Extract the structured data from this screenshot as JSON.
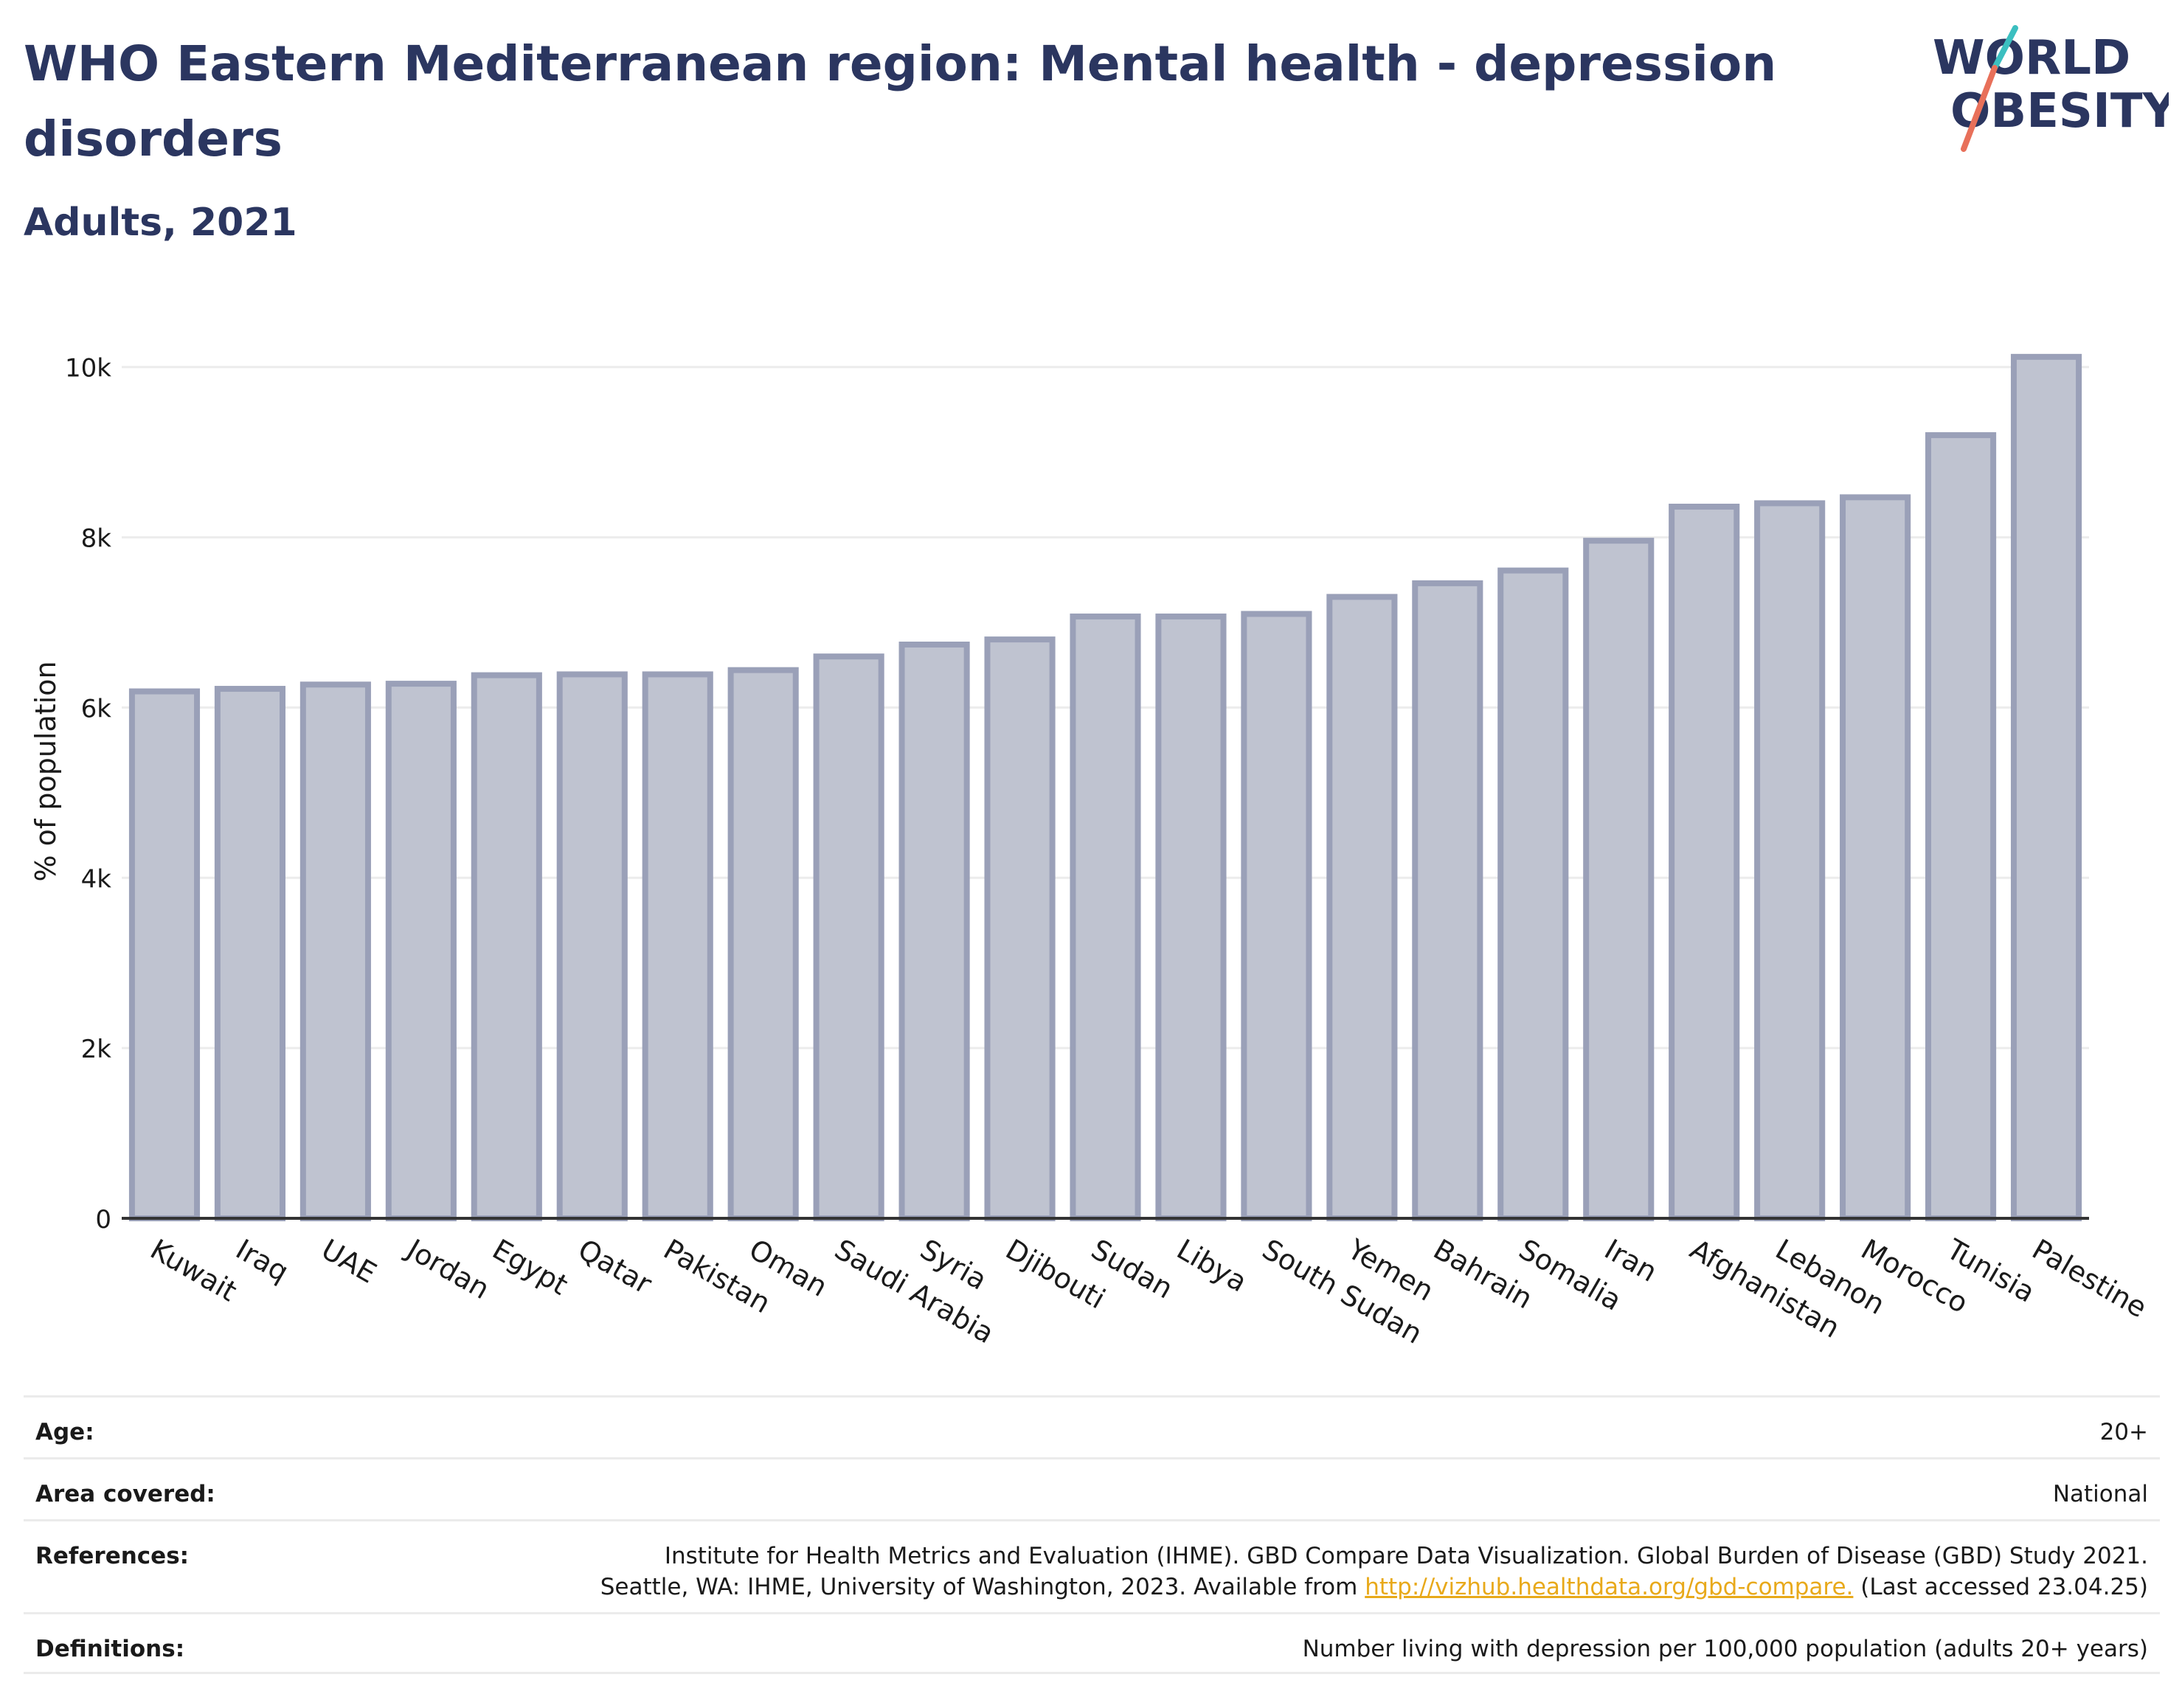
{
  "header": {
    "title": "WHO Eastern Mediterranean region: Mental health - depression disorders",
    "subtitle": "Adults, 2021"
  },
  "logo": {
    "line1": "WORLD",
    "line2": "OBESITY",
    "icon": "world-obesity-logo",
    "colors": {
      "text": "#2b3660",
      "slash_teal": "#3bbfc0",
      "slash_coral": "#e8705a"
    }
  },
  "colors": {
    "bar_fill": "#bfc3d0",
    "bar_stroke": "#9aa0b8",
    "text_dark": "#2b3660",
    "gridline": "#ececec",
    "link": "#e8a91a"
  },
  "chart_data": {
    "type": "bar",
    "title": "",
    "xlabel": "",
    "ylabel": "% of population",
    "ylim": [
      0,
      10500
    ],
    "yticks": [
      0,
      2000,
      4000,
      6000,
      8000,
      10000
    ],
    "ytick_labels": [
      "0",
      "2k",
      "4k",
      "6k",
      "8k",
      "10k"
    ],
    "grid": true,
    "categories": [
      "Kuwait",
      "Iraq",
      "UAE",
      "Jordan",
      "Egypt",
      "Qatar",
      "Pakistan",
      "Oman",
      "Saudi Arabia",
      "Syria",
      "Djibouti",
      "Sudan",
      "Libya",
      "South Sudan",
      "Yemen",
      "Bahrain",
      "Somalia",
      "Iran",
      "Afghanistan",
      "Lebanon",
      "Morocco",
      "Tunisia",
      "Palestine"
    ],
    "values": [
      6190,
      6220,
      6270,
      6280,
      6380,
      6390,
      6390,
      6440,
      6600,
      6740,
      6800,
      7070,
      7070,
      7100,
      7300,
      7460,
      7610,
      7960,
      8360,
      8400,
      8470,
      9200,
      10120
    ]
  },
  "info": {
    "age_label": "Age:",
    "age_value": "20+",
    "area_label": "Area covered:",
    "area_value": "National",
    "references_label": "References:",
    "references_line1": "Institute for Health Metrics and Evaluation (IHME). GBD Compare Data Visualization. Global Burden of Disease (GBD) Study 2021.",
    "references_line2_prefix": "Seattle, WA: IHME, University of Washington, 2023. Available from ",
    "references_link": "http://vizhub.healthdata.org/gbd-compare.",
    "references_line2_suffix": " (Last accessed 23.04.25)",
    "definitions_label": "Definitions:",
    "definitions_value": "Number living with depression per 100,000 population (adults 20+ years)"
  }
}
